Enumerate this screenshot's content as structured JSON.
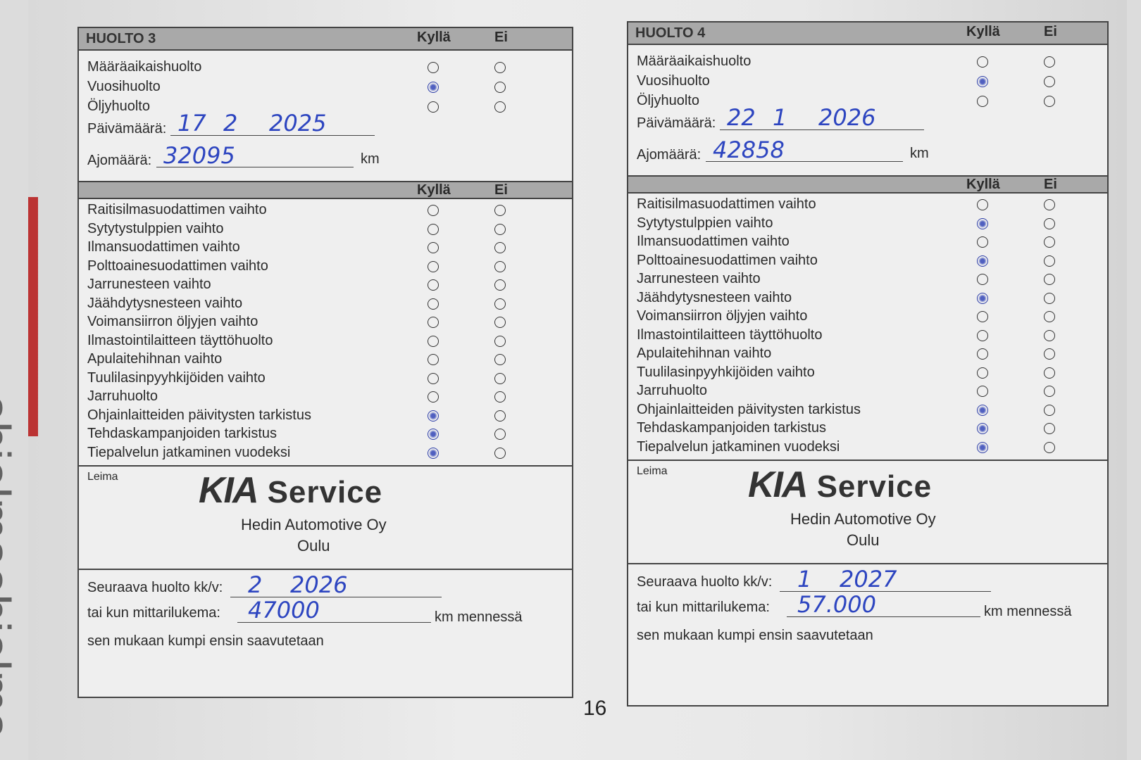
{
  "spine_text": "ohjelmaohjelma",
  "page_number": "16",
  "colors": {
    "ink": "#2d45c0",
    "band": "#a9a9a9"
  },
  "common": {
    "yes": "Kyllä",
    "no": "Ei",
    "date_label": "Päivämäärä:",
    "km_label": "Ajomäärä:",
    "km": "km",
    "stamp_label": "Leima",
    "logo": "KIA",
    "service": "Service",
    "dealer": "Hedin Automotive Oy",
    "city": "Oulu",
    "next_label": "Seuraava huolto kk/v:",
    "odo_label": "tai kun mittarilukema:",
    "km_before": "km mennessä",
    "whichever": "sen mukaan kumpi ensin saavutetaan",
    "top_items": [
      "Määräaikaishuolto",
      "Vuosihuolto",
      "Öljyhuolto"
    ],
    "items": [
      "Raitisilmasuodattimen vaihto",
      "Sytytystulppien vaihto",
      "Ilmansuodattimen vaihto",
      "Polttoainesuodattimen vaihto",
      "Jarrunesteen vaihto",
      "Jäähdytysnesteen vaihto",
      "Voimansiirron öljyjen vaihto",
      "Ilmastointilaitteen täyttöhuolto",
      "Apulaitehihnan vaihto",
      "Tuulilasinpyyhkijöiden vaihto",
      "Jarruhuolto",
      "Ohjainlaitteiden päivitysten tarkistus",
      "Tehdaskampanjoiden tarkistus",
      "Tiepalvelun jatkaminen vuodeksi"
    ]
  },
  "forms": [
    {
      "title": "HUOLTO 3",
      "date": {
        "d": "17",
        "m": "2",
        "y": "2025"
      },
      "odometer": "32095",
      "top_checked": [
        false,
        true,
        false
      ],
      "checked": [
        false,
        false,
        false,
        false,
        false,
        false,
        false,
        false,
        false,
        false,
        false,
        true,
        true,
        true
      ],
      "next": {
        "month": "2",
        "year": "2026"
      },
      "next_km": "47000"
    },
    {
      "title": "HUOLTO 4",
      "date": {
        "d": "22",
        "m": "1",
        "y": "2026"
      },
      "odometer": "42858",
      "top_checked": [
        false,
        true,
        false
      ],
      "checked": [
        false,
        true,
        false,
        true,
        false,
        true,
        false,
        false,
        false,
        false,
        false,
        true,
        true,
        true
      ],
      "next": {
        "month": "1",
        "year": "2027"
      },
      "next_km": "57.000"
    }
  ]
}
